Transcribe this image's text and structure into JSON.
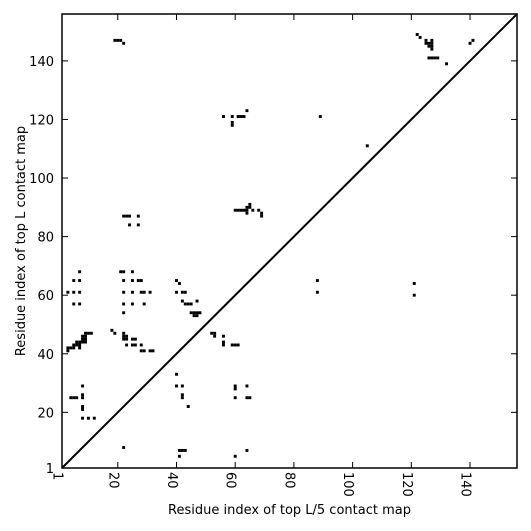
{
  "chart_data": {
    "type": "heatmap",
    "title": "",
    "xlabel": "Residue index of top L/5 contact map",
    "ylabel": "Residue index of top L contact map",
    "xlim": [
      1,
      156
    ],
    "ylim": [
      1,
      156
    ],
    "x_ticks": [
      1,
      20,
      40,
      60,
      80,
      100,
      120,
      140
    ],
    "y_ticks": [
      1,
      20,
      40,
      60,
      80,
      100,
      120,
      140
    ],
    "x_tick_labels": [
      "1",
      "20",
      "40",
      "60",
      "80",
      "100",
      "120",
      "140"
    ],
    "y_tick_labels": [
      "1",
      "20",
      "40",
      "60",
      "80",
      "100",
      "120",
      "140"
    ],
    "diagonal": true,
    "grid": false,
    "legend": "none",
    "cell_color": "#000000",
    "contacts": [
      [
        19,
        147
      ],
      [
        20,
        147
      ],
      [
        21,
        147
      ],
      [
        22,
        146
      ],
      [
        3,
        61
      ],
      [
        5,
        65
      ],
      [
        5,
        61
      ],
      [
        5,
        57
      ],
      [
        7,
        68
      ],
      [
        7,
        65
      ],
      [
        7,
        61
      ],
      [
        7,
        57
      ],
      [
        3,
        42
      ],
      [
        3,
        41
      ],
      [
        4,
        42
      ],
      [
        5,
        43
      ],
      [
        5,
        42
      ],
      [
        6,
        44
      ],
      [
        6,
        43
      ],
      [
        7,
        44
      ],
      [
        7,
        43
      ],
      [
        7,
        42
      ],
      [
        8,
        45
      ],
      [
        8,
        44
      ],
      [
        8,
        46
      ],
      [
        9,
        47
      ],
      [
        9,
        46
      ],
      [
        9,
        45
      ],
      [
        9,
        44
      ],
      [
        10,
        47
      ],
      [
        11,
        47
      ],
      [
        4,
        25
      ],
      [
        5,
        25
      ],
      [
        6,
        25
      ],
      [
        8,
        29
      ],
      [
        8,
        26
      ],
      [
        8,
        25
      ],
      [
        8,
        22
      ],
      [
        8,
        21
      ],
      [
        8,
        18
      ],
      [
        10,
        18
      ],
      [
        12,
        18
      ],
      [
        18,
        48
      ],
      [
        19,
        47
      ],
      [
        22,
        47
      ],
      [
        22,
        46
      ],
      [
        22,
        45
      ],
      [
        23,
        46
      ],
      [
        23,
        45
      ],
      [
        23,
        43
      ],
      [
        25,
        45
      ],
      [
        26,
        45
      ],
      [
        25,
        43
      ],
      [
        26,
        43
      ],
      [
        28,
        43
      ],
      [
        28,
        41
      ],
      [
        29,
        41
      ],
      [
        31,
        41
      ],
      [
        32,
        41
      ],
      [
        22,
        87
      ],
      [
        23,
        87
      ],
      [
        24,
        87
      ],
      [
        24,
        84
      ],
      [
        27,
        87
      ],
      [
        27,
        84
      ],
      [
        21,
        68
      ],
      [
        22,
        68
      ],
      [
        22,
        65
      ],
      [
        22,
        61
      ],
      [
        22,
        57
      ],
      [
        22,
        54
      ],
      [
        25,
        68
      ],
      [
        25,
        65
      ],
      [
        25,
        61
      ],
      [
        25,
        57
      ],
      [
        27,
        65
      ],
      [
        28,
        65
      ],
      [
        28,
        61
      ],
      [
        29,
        61
      ],
      [
        29,
        57
      ],
      [
        31,
        61
      ],
      [
        22,
        8
      ],
      [
        40,
        65
      ],
      [
        40,
        61
      ],
      [
        40,
        33
      ],
      [
        40,
        29
      ],
      [
        41,
        64
      ],
      [
        42,
        61
      ],
      [
        42,
        58
      ],
      [
        43,
        61
      ],
      [
        43,
        57
      ],
      [
        44,
        57
      ],
      [
        45,
        54
      ],
      [
        45,
        57
      ],
      [
        46,
        53
      ],
      [
        46,
        54
      ],
      [
        47,
        54
      ],
      [
        47,
        58
      ],
      [
        47,
        53
      ],
      [
        48,
        54
      ],
      [
        42,
        29
      ],
      [
        42,
        26
      ],
      [
        42,
        25
      ],
      [
        44,
        22
      ],
      [
        41,
        7
      ],
      [
        41,
        5
      ],
      [
        42,
        7
      ],
      [
        43,
        7
      ],
      [
        52,
        47
      ],
      [
        53,
        47
      ],
      [
        53,
        46
      ],
      [
        56,
        46
      ],
      [
        56,
        44
      ],
      [
        56,
        43
      ],
      [
        59,
        43
      ],
      [
        60,
        43
      ],
      [
        61,
        43
      ],
      [
        60,
        29
      ],
      [
        60,
        28
      ],
      [
        60,
        25
      ],
      [
        64,
        29
      ],
      [
        64,
        25
      ],
      [
        65,
        25
      ],
      [
        64,
        7
      ],
      [
        60,
        5
      ],
      [
        56,
        121
      ],
      [
        59,
        121
      ],
      [
        59,
        119
      ],
      [
        59,
        118
      ],
      [
        61,
        121
      ],
      [
        62,
        121
      ],
      [
        63,
        121
      ],
      [
        64,
        123
      ],
      [
        60,
        89
      ],
      [
        61,
        89
      ],
      [
        62,
        89
      ],
      [
        63,
        89
      ],
      [
        64,
        90
      ],
      [
        64,
        89
      ],
      [
        64,
        88
      ],
      [
        65,
        91
      ],
      [
        65,
        90
      ],
      [
        66,
        89
      ],
      [
        68,
        89
      ],
      [
        69,
        88
      ],
      [
        69,
        87
      ],
      [
        89,
        121
      ],
      [
        88,
        65
      ],
      [
        88,
        61
      ],
      [
        105,
        111
      ],
      [
        121,
        64
      ],
      [
        121,
        60
      ],
      [
        122,
        149
      ],
      [
        123,
        148
      ],
      [
        125,
        147
      ],
      [
        125,
        146
      ],
      [
        126,
        146
      ],
      [
        126,
        145
      ],
      [
        127,
        147
      ],
      [
        127,
        146
      ],
      [
        127,
        145
      ],
      [
        127,
        144
      ],
      [
        126,
        141
      ],
      [
        127,
        141
      ],
      [
        128,
        141
      ],
      [
        129,
        141
      ],
      [
        132,
        139
      ],
      [
        140,
        146
      ],
      [
        141,
        147
      ]
    ]
  }
}
